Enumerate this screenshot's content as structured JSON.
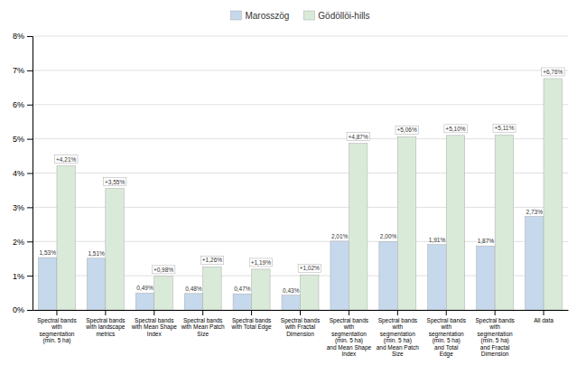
{
  "chart_data": {
    "type": "bar",
    "categories": [
      "Spectral bands\nwith\nsegmentation\n(min. 5 ha)",
      "Spectral bands\nwith landscape\nmetrics",
      "Spectral bands\nwith Mean Shape\nIndex",
      "Spectral bands\nwith Mean Patch\nSize",
      "Spectral bands\nwith Total Edge",
      "Spectral bands\nwith Fractal\nDimension",
      "Spectral bands\nwith\nsegmentation\n(min. 5 ha)\nand Mean Shape\nIndex",
      "Spectral bands\nwith\nsegmentation\n(min. 5 ha)\nand Mean Patch\nSize",
      "Spectral bands\nwith\nsegmentation\n(min. 5 ha)\nand Total\nEdge",
      "Spectral bands\nwith\nsegmentation\n(min. 5 ha)\nand Fractal\nDimension",
      "All data"
    ],
    "series": [
      {
        "name": "Marosszög",
        "color": "#c5d8ec",
        "values": [
          1.53,
          1.51,
          0.49,
          0.48,
          0.47,
          0.43,
          2.01,
          2.0,
          1.91,
          1.87,
          2.73
        ],
        "value_labels": [
          "1,53%",
          "1,51%",
          "0,49%",
          "0,48%",
          "0,47%",
          "0,43%",
          "2,01%",
          "2,00%",
          "1,91%",
          "1,87%",
          "2,73%"
        ]
      },
      {
        "name": "Gödöllöi-hills",
        "color": "#d9ead9",
        "values": [
          4.21,
          3.55,
          0.98,
          1.26,
          1.19,
          1.02,
          4.87,
          5.06,
          5.1,
          5.11,
          6.76
        ],
        "value_labels": [
          "+4,21%",
          "+3,55%",
          "+0,98%",
          "+1,26%",
          "+1,19%",
          "+1,02%",
          "+4,87%",
          "+5,06%",
          "+5,10%",
          "+5,11%",
          "+6,76%"
        ]
      }
    ],
    "ylim": [
      0,
      8
    ],
    "yticks": [
      {
        "value": 0,
        "label": "0%"
      },
      {
        "value": 1,
        "label": "1%"
      },
      {
        "value": 2,
        "label": "2%"
      },
      {
        "value": 3,
        "label": "3%"
      },
      {
        "value": 4,
        "label": "4%"
      },
      {
        "value": 5,
        "label": "5%"
      },
      {
        "value": 6,
        "label": "6%"
      },
      {
        "value": 7,
        "label": "7%"
      },
      {
        "value": 8,
        "label": "8%"
      }
    ],
    "grid": true,
    "legend": "top",
    "data_labels": true
  }
}
